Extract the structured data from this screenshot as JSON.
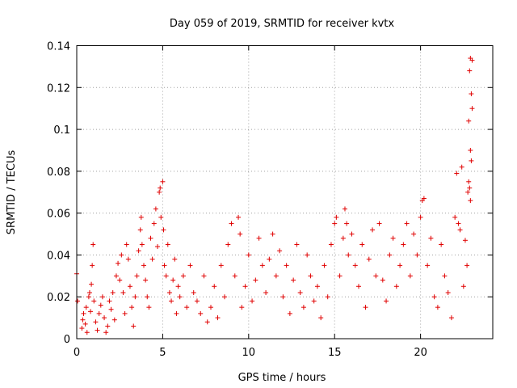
{
  "chart_data": {
    "type": "scatter",
    "title": "Day 059 of 2019, SRMTID for receiver kvtx",
    "xlabel": "GPS time / hours",
    "ylabel": "SRMTID / TECUs",
    "xlim": [
      0,
      24.2
    ],
    "ylim": [
      0,
      0.14
    ],
    "xticks": [
      0,
      5,
      10,
      15,
      20
    ],
    "xtick_labels": [
      "0",
      "5",
      "10",
      "15",
      "20"
    ],
    "yticks": [
      0,
      0.02,
      0.04,
      0.06,
      0.08,
      0.1,
      0.12,
      0.14
    ],
    "ytick_labels": [
      "0",
      "0.02",
      "0.04",
      "0.06",
      "0.08",
      "0.1",
      "0.12",
      "0.14"
    ],
    "grid": true,
    "marker": "+",
    "color": "#e00000",
    "series": [
      {
        "points": [
          [
            0.0,
            0.031
          ],
          [
            0.05,
            0.018
          ],
          [
            0.3,
            0.005
          ],
          [
            0.35,
            0.009
          ],
          [
            0.4,
            0.012
          ],
          [
            0.5,
            0.007
          ],
          [
            0.55,
            0.015
          ],
          [
            0.6,
            0.003
          ],
          [
            0.7,
            0.02
          ],
          [
            0.75,
            0.022
          ],
          [
            0.8,
            0.013
          ],
          [
            0.85,
            0.026
          ],
          [
            0.9,
            0.035
          ],
          [
            0.95,
            0.045
          ],
          [
            1.0,
            0.018
          ],
          [
            1.1,
            0.008
          ],
          [
            1.2,
            0.004
          ],
          [
            1.3,
            0.012
          ],
          [
            1.4,
            0.016
          ],
          [
            1.5,
            0.02
          ],
          [
            1.6,
            0.01
          ],
          [
            1.7,
            0.003
          ],
          [
            1.8,
            0.006
          ],
          [
            1.9,
            0.018
          ],
          [
            2.0,
            0.014
          ],
          [
            2.1,
            0.022
          ],
          [
            2.2,
            0.009
          ],
          [
            2.3,
            0.03
          ],
          [
            2.4,
            0.036
          ],
          [
            2.5,
            0.028
          ],
          [
            2.6,
            0.04
          ],
          [
            2.7,
            0.022
          ],
          [
            2.8,
            0.012
          ],
          [
            2.9,
            0.045
          ],
          [
            3.0,
            0.038
          ],
          [
            3.1,
            0.025
          ],
          [
            3.2,
            0.015
          ],
          [
            3.3,
            0.006
          ],
          [
            3.4,
            0.02
          ],
          [
            3.5,
            0.03
          ],
          [
            3.6,
            0.042
          ],
          [
            3.7,
            0.052
          ],
          [
            3.75,
            0.058
          ],
          [
            3.8,
            0.045
          ],
          [
            3.9,
            0.035
          ],
          [
            4.0,
            0.028
          ],
          [
            4.1,
            0.02
          ],
          [
            4.2,
            0.015
          ],
          [
            4.3,
            0.048
          ],
          [
            4.4,
            0.038
          ],
          [
            4.5,
            0.055
          ],
          [
            4.6,
            0.062
          ],
          [
            4.7,
            0.044
          ],
          [
            4.8,
            0.07
          ],
          [
            4.85,
            0.072
          ],
          [
            4.9,
            0.058
          ],
          [
            5.0,
            0.075
          ],
          [
            5.05,
            0.052
          ],
          [
            5.1,
            0.035
          ],
          [
            5.2,
            0.03
          ],
          [
            5.3,
            0.045
          ],
          [
            5.4,
            0.022
          ],
          [
            5.5,
            0.018
          ],
          [
            5.6,
            0.028
          ],
          [
            5.7,
            0.038
          ],
          [
            5.8,
            0.012
          ],
          [
            5.9,
            0.025
          ],
          [
            6.0,
            0.02
          ],
          [
            6.2,
            0.03
          ],
          [
            6.4,
            0.015
          ],
          [
            6.6,
            0.035
          ],
          [
            6.8,
            0.022
          ],
          [
            7.0,
            0.018
          ],
          [
            7.2,
            0.012
          ],
          [
            7.4,
            0.03
          ],
          [
            7.6,
            0.008
          ],
          [
            7.8,
            0.015
          ],
          [
            8.0,
            0.025
          ],
          [
            8.2,
            0.01
          ],
          [
            8.4,
            0.035
          ],
          [
            8.6,
            0.02
          ],
          [
            8.8,
            0.045
          ],
          [
            9.0,
            0.055
          ],
          [
            9.2,
            0.03
          ],
          [
            9.4,
            0.058
          ],
          [
            9.5,
            0.05
          ],
          [
            9.6,
            0.015
          ],
          [
            9.8,
            0.025
          ],
          [
            10.0,
            0.04
          ],
          [
            10.2,
            0.018
          ],
          [
            10.4,
            0.028
          ],
          [
            10.6,
            0.048
          ],
          [
            10.8,
            0.035
          ],
          [
            11.0,
            0.022
          ],
          [
            11.2,
            0.038
          ],
          [
            11.4,
            0.05
          ],
          [
            11.6,
            0.03
          ],
          [
            11.8,
            0.042
          ],
          [
            12.0,
            0.02
          ],
          [
            12.2,
            0.035
          ],
          [
            12.4,
            0.012
          ],
          [
            12.6,
            0.028
          ],
          [
            12.8,
            0.045
          ],
          [
            13.0,
            0.022
          ],
          [
            13.2,
            0.015
          ],
          [
            13.4,
            0.04
          ],
          [
            13.6,
            0.03
          ],
          [
            13.8,
            0.018
          ],
          [
            14.0,
            0.025
          ],
          [
            14.2,
            0.01
          ],
          [
            14.4,
            0.035
          ],
          [
            14.6,
            0.02
          ],
          [
            14.8,
            0.045
          ],
          [
            15.0,
            0.055
          ],
          [
            15.1,
            0.058
          ],
          [
            15.3,
            0.03
          ],
          [
            15.5,
            0.048
          ],
          [
            15.6,
            0.062
          ],
          [
            15.7,
            0.055
          ],
          [
            15.8,
            0.04
          ],
          [
            16.0,
            0.05
          ],
          [
            16.2,
            0.035
          ],
          [
            16.4,
            0.025
          ],
          [
            16.6,
            0.045
          ],
          [
            16.8,
            0.015
          ],
          [
            17.0,
            0.038
          ],
          [
            17.2,
            0.052
          ],
          [
            17.4,
            0.03
          ],
          [
            17.6,
            0.055
          ],
          [
            17.8,
            0.028
          ],
          [
            18.0,
            0.018
          ],
          [
            18.2,
            0.04
          ],
          [
            18.4,
            0.048
          ],
          [
            18.6,
            0.025
          ],
          [
            18.8,
            0.035
          ],
          [
            19.0,
            0.045
          ],
          [
            19.2,
            0.055
          ],
          [
            19.4,
            0.03
          ],
          [
            19.6,
            0.05
          ],
          [
            19.8,
            0.04
          ],
          [
            20.0,
            0.058
          ],
          [
            20.1,
            0.066
          ],
          [
            20.2,
            0.067
          ],
          [
            20.4,
            0.035
          ],
          [
            20.6,
            0.048
          ],
          [
            20.8,
            0.02
          ],
          [
            21.0,
            0.015
          ],
          [
            21.2,
            0.045
          ],
          [
            21.4,
            0.03
          ],
          [
            21.6,
            0.022
          ],
          [
            21.8,
            0.01
          ],
          [
            22.0,
            0.058
          ],
          [
            22.1,
            0.079
          ],
          [
            22.2,
            0.055
          ],
          [
            22.3,
            0.052
          ],
          [
            22.4,
            0.082
          ],
          [
            22.5,
            0.025
          ],
          [
            22.6,
            0.047
          ],
          [
            22.7,
            0.035
          ],
          [
            22.75,
            0.07
          ],
          [
            22.8,
            0.104
          ],
          [
            22.85,
            0.128
          ],
          [
            22.9,
            0.134
          ],
          [
            22.95,
            0.117
          ],
          [
            23.0,
            0.11
          ],
          [
            22.9,
            0.09
          ],
          [
            22.95,
            0.085
          ],
          [
            22.8,
            0.075
          ],
          [
            22.85,
            0.072
          ],
          [
            22.9,
            0.066
          ],
          [
            23.0,
            0.133
          ]
        ]
      }
    ]
  }
}
